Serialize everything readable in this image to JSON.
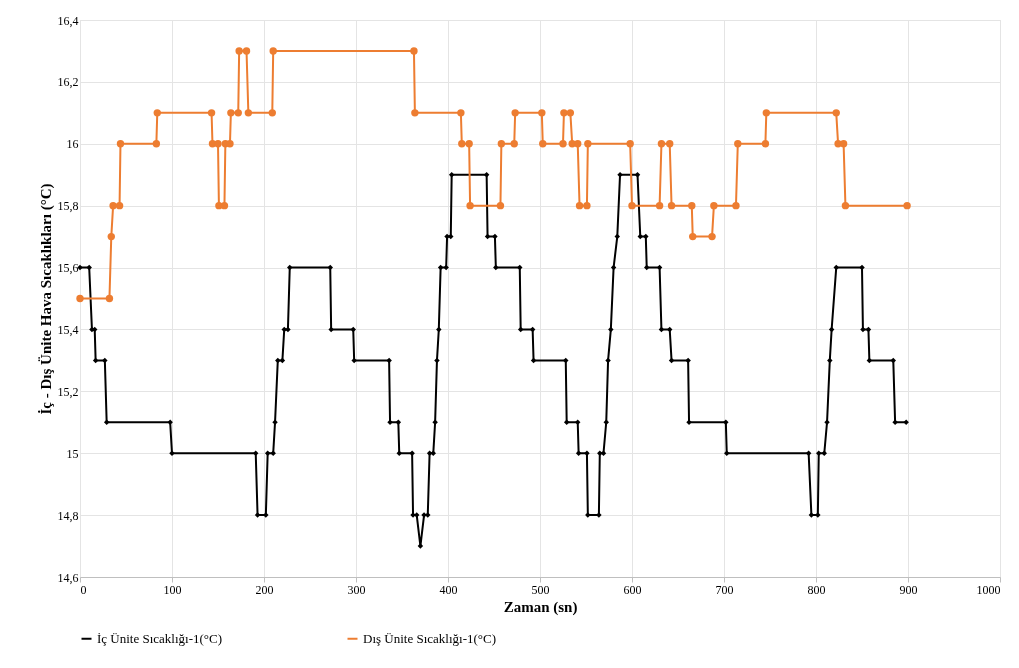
{
  "chart_data": {
    "type": "line",
    "xlabel": "Zaman (sn)",
    "ylabel": "İç - Dış Ünite Hava Sıcaklıkları (°C)",
    "xlim": [
      0,
      1000
    ],
    "xticks": [
      0,
      100,
      200,
      300,
      400,
      500,
      600,
      700,
      800,
      900,
      1000
    ],
    "ylim": [
      14.6,
      16.4
    ],
    "yticks": [
      {
        "value": 14.6,
        "label": "14,6"
      },
      {
        "value": 14.8,
        "label": "14,8"
      },
      15,
      {
        "value": 15.2,
        "label": "15,2"
      },
      {
        "value": 15.4,
        "label": "15,4"
      },
      {
        "value": 15.6,
        "label": "15,6"
      },
      {
        "value": 15.8,
        "label": "15,8"
      },
      16,
      {
        "value": 16.2,
        "label": "16,2"
      },
      {
        "value": 16.4,
        "label": "16,4"
      }
    ],
    "grid": true,
    "legend": "bottom",
    "line_style": "solid",
    "series": [
      {
        "name": "İç Ünite Sıcaklığı-1(°C)",
        "color": "#000000",
        "marker": "diamond",
        "x": [
          0,
          10,
          13,
          16,
          17,
          27,
          29,
          98,
          100,
          191,
          193,
          202,
          204,
          210,
          212,
          215,
          220,
          222,
          226,
          228,
          272,
          273,
          297,
          298,
          336,
          337,
          346,
          347,
          361,
          362,
          366,
          370,
          374,
          378,
          380,
          384,
          386,
          388,
          390,
          392,
          398,
          399,
          403,
          404,
          442,
          443,
          451,
          452,
          478,
          479,
          492,
          493,
          528,
          529,
          541,
          542,
          551,
          552,
          564,
          565,
          569,
          572,
          574,
          577,
          580,
          584,
          587,
          606,
          609,
          615,
          616,
          630,
          632,
          641,
          643,
          661,
          662,
          702,
          703,
          792,
          795,
          802,
          803,
          809,
          812,
          815,
          817,
          822,
          850,
          851,
          857,
          858,
          884,
          886,
          898
        ],
        "values": [
          15.6,
          15.6,
          15.4,
          15.4,
          15.3,
          15.3,
          15.1,
          15.1,
          15.0,
          15.0,
          14.8,
          14.8,
          15.0,
          15.0,
          15.1,
          15.3,
          15.3,
          15.4,
          15.4,
          15.6,
          15.6,
          15.4,
          15.4,
          15.3,
          15.3,
          15.1,
          15.1,
          15.0,
          15.0,
          14.8,
          14.8,
          14.7,
          14.8,
          14.8,
          15.0,
          15.0,
          15.1,
          15.3,
          15.4,
          15.6,
          15.6,
          15.7,
          15.7,
          15.9,
          15.9,
          15.7,
          15.7,
          15.6,
          15.6,
          15.4,
          15.4,
          15.3,
          15.3,
          15.1,
          15.1,
          15.0,
          15.0,
          14.8,
          14.8,
          15.0,
          15.0,
          15.1,
          15.3,
          15.4,
          15.6,
          15.7,
          15.9,
          15.9,
          15.7,
          15.7,
          15.6,
          15.6,
          15.4,
          15.4,
          15.3,
          15.3,
          15.1,
          15.1,
          15.0,
          15.0,
          14.8,
          14.8,
          15.0,
          15.0,
          15.1,
          15.3,
          15.4,
          15.6,
          15.6,
          15.4,
          15.4,
          15.3,
          15.3,
          15.1,
          15.1
        ]
      },
      {
        "name": "Dış Ünite Sıcaklığı-1(°C)",
        "color": "#ed7d31",
        "marker": "circle",
        "x": [
          0,
          32,
          34,
          36,
          43,
          44,
          83,
          84,
          143,
          144,
          150,
          151,
          157,
          158,
          163,
          164,
          172,
          173,
          181,
          183,
          209,
          210,
          363,
          364,
          414,
          415,
          423,
          424,
          457,
          458,
          472,
          473,
          502,
          503,
          525,
          526,
          533,
          535,
          541,
          543,
          551,
          552,
          598,
          600,
          630,
          632,
          641,
          643,
          665,
          666,
          687,
          689,
          713,
          715,
          745,
          746,
          822,
          824,
          830,
          832,
          899
        ],
        "values": [
          15.5,
          15.5,
          15.7,
          15.8,
          15.8,
          16.0,
          16.0,
          16.1,
          16.1,
          16.0,
          16.0,
          15.8,
          15.8,
          16.0,
          16.0,
          16.1,
          16.1,
          16.3,
          16.3,
          16.1,
          16.1,
          16.3,
          16.3,
          16.1,
          16.1,
          16.0,
          16.0,
          15.8,
          15.8,
          16.0,
          16.0,
          16.1,
          16.1,
          16.0,
          16.0,
          16.1,
          16.1,
          16.0,
          16.0,
          15.8,
          15.8,
          16.0,
          16.0,
          15.8,
          15.8,
          16.0,
          16.0,
          15.8,
          15.8,
          15.7,
          15.7,
          15.8,
          15.8,
          16.0,
          16.0,
          16.1,
          16.1,
          16.0,
          16.0,
          15.8,
          15.8
        ]
      }
    ]
  }
}
